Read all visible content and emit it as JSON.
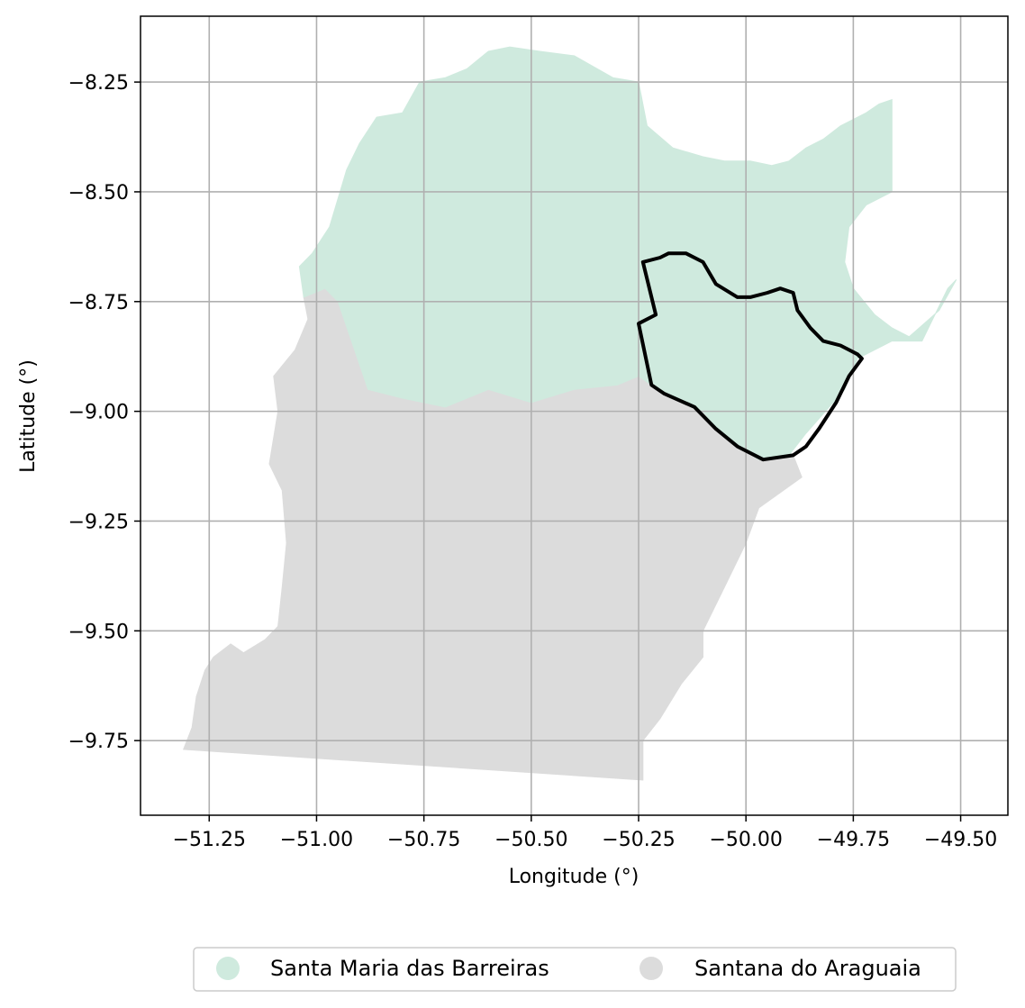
{
  "chart_data": {
    "type": "map",
    "xlabel": "Longitude (°)",
    "ylabel": "Latitude (°)",
    "xlim": [
      -51.41,
      -49.39
    ],
    "ylim": [
      -9.92,
      -8.1
    ],
    "grid": true,
    "legend_placement": "bottom-center",
    "x_ticks": [
      {
        "value": -51.25,
        "label": "−51.25"
      },
      {
        "value": -51.0,
        "label": "−51.00"
      },
      {
        "value": -50.75,
        "label": "−50.75"
      },
      {
        "value": -50.5,
        "label": "−50.50"
      },
      {
        "value": -50.25,
        "label": "−50.25"
      },
      {
        "value": -50.0,
        "label": "−50.00"
      },
      {
        "value": -49.75,
        "label": "−49.75"
      },
      {
        "value": -49.5,
        "label": "−49.50"
      }
    ],
    "y_ticks": [
      {
        "value": -8.25,
        "label": "−8.25"
      },
      {
        "value": -8.5,
        "label": "−8.50"
      },
      {
        "value": -8.75,
        "label": "−8.75"
      },
      {
        "value": -9.0,
        "label": "−9.00"
      },
      {
        "value": -9.25,
        "label": "−9.25"
      },
      {
        "value": -9.5,
        "label": "−9.50"
      },
      {
        "value": -9.75,
        "label": "−9.75"
      }
    ],
    "regions": [
      {
        "name": "Santana do Araguaia",
        "color": "#dcdcdc",
        "coords": [
          [
            -51.31,
            -9.77
          ],
          [
            -51.29,
            -9.72
          ],
          [
            -51.28,
            -9.65
          ],
          [
            -51.26,
            -9.59
          ],
          [
            -51.24,
            -9.56
          ],
          [
            -51.2,
            -9.53
          ],
          [
            -51.17,
            -9.55
          ],
          [
            -51.12,
            -9.52
          ],
          [
            -51.09,
            -9.49
          ],
          [
            -51.08,
            -9.4
          ],
          [
            -51.07,
            -9.3
          ],
          [
            -51.08,
            -9.18
          ],
          [
            -51.11,
            -9.12
          ],
          [
            -51.09,
            -9.0
          ],
          [
            -51.1,
            -8.92
          ],
          [
            -51.05,
            -8.86
          ],
          [
            -51.02,
            -8.79
          ],
          [
            -51.03,
            -8.74
          ],
          [
            -50.98,
            -8.72
          ],
          [
            -50.95,
            -8.75
          ],
          [
            -50.88,
            -8.95
          ],
          [
            -50.8,
            -8.97
          ],
          [
            -50.7,
            -8.99
          ],
          [
            -50.6,
            -8.95
          ],
          [
            -50.5,
            -8.98
          ],
          [
            -50.4,
            -8.95
          ],
          [
            -50.3,
            -8.94
          ],
          [
            -50.25,
            -8.92
          ],
          [
            -50.22,
            -8.94
          ],
          [
            -50.1,
            -9.0
          ],
          [
            -50.05,
            -9.06
          ],
          [
            -49.97,
            -9.11
          ],
          [
            -49.89,
            -9.1
          ],
          [
            -49.87,
            -9.15
          ],
          [
            -49.97,
            -9.22
          ],
          [
            -50.0,
            -9.3
          ],
          [
            -50.05,
            -9.4
          ],
          [
            -50.1,
            -9.5
          ],
          [
            -50.1,
            -9.56
          ],
          [
            -50.15,
            -9.62
          ],
          [
            -50.2,
            -9.7
          ],
          [
            -50.24,
            -9.75
          ],
          [
            -50.24,
            -9.84
          ],
          [
            -51.31,
            -9.77
          ]
        ]
      },
      {
        "name": "Santa Maria das Barreiras",
        "color": "#cfeade",
        "coords": [
          [
            -51.04,
            -8.67
          ],
          [
            -51.01,
            -8.64
          ],
          [
            -50.97,
            -8.58
          ],
          [
            -50.93,
            -8.45
          ],
          [
            -50.9,
            -8.39
          ],
          [
            -50.86,
            -8.33
          ],
          [
            -50.8,
            -8.32
          ],
          [
            -50.76,
            -8.25
          ],
          [
            -50.7,
            -8.24
          ],
          [
            -50.65,
            -8.22
          ],
          [
            -50.6,
            -8.18
          ],
          [
            -50.55,
            -8.17
          ],
          [
            -50.48,
            -8.18
          ],
          [
            -50.4,
            -8.19
          ],
          [
            -50.31,
            -8.24
          ],
          [
            -50.25,
            -8.25
          ],
          [
            -50.23,
            -8.35
          ],
          [
            -50.17,
            -8.4
          ],
          [
            -50.1,
            -8.42
          ],
          [
            -50.05,
            -8.43
          ],
          [
            -49.99,
            -8.43
          ],
          [
            -49.94,
            -8.44
          ],
          [
            -49.9,
            -8.43
          ],
          [
            -49.86,
            -8.4
          ],
          [
            -49.82,
            -8.38
          ],
          [
            -49.78,
            -8.35
          ],
          [
            -49.72,
            -8.32
          ],
          [
            -49.69,
            -8.3
          ],
          [
            -49.66,
            -8.29
          ],
          [
            -49.66,
            -8.5
          ],
          [
            -49.72,
            -8.53
          ],
          [
            -49.76,
            -8.58
          ],
          [
            -49.77,
            -8.66
          ],
          [
            -49.75,
            -8.72
          ],
          [
            -49.7,
            -8.78
          ],
          [
            -49.66,
            -8.81
          ],
          [
            -49.62,
            -8.83
          ],
          [
            -49.55,
            -8.77
          ],
          [
            -49.51,
            -8.7
          ],
          [
            -49.53,
            -8.72
          ],
          [
            -49.59,
            -8.84
          ],
          [
            -49.66,
            -8.84
          ],
          [
            -49.74,
            -8.88
          ],
          [
            -49.77,
            -8.95
          ],
          [
            -49.86,
            -9.05
          ],
          [
            -49.9,
            -9.1
          ],
          [
            -49.97,
            -9.11
          ],
          [
            -50.05,
            -9.06
          ],
          [
            -50.1,
            -9.0
          ],
          [
            -50.22,
            -8.94
          ],
          [
            -50.25,
            -8.92
          ],
          [
            -50.3,
            -8.94
          ],
          [
            -50.4,
            -8.95
          ],
          [
            -50.5,
            -8.98
          ],
          [
            -50.6,
            -8.95
          ],
          [
            -50.7,
            -8.99
          ],
          [
            -50.8,
            -8.97
          ],
          [
            -50.88,
            -8.95
          ],
          [
            -50.95,
            -8.75
          ],
          [
            -50.98,
            -8.72
          ],
          [
            -51.03,
            -8.74
          ],
          [
            -51.04,
            -8.67
          ]
        ]
      }
    ],
    "highlight_outline": {
      "color": "#000000",
      "coords": [
        [
          -50.24,
          -8.66
        ],
        [
          -50.2,
          -8.65
        ],
        [
          -50.18,
          -8.64
        ],
        [
          -50.14,
          -8.64
        ],
        [
          -50.1,
          -8.66
        ],
        [
          -50.07,
          -8.71
        ],
        [
          -50.02,
          -8.74
        ],
        [
          -49.99,
          -8.74
        ],
        [
          -49.95,
          -8.73
        ],
        [
          -49.92,
          -8.72
        ],
        [
          -49.89,
          -8.73
        ],
        [
          -49.88,
          -8.77
        ],
        [
          -49.85,
          -8.81
        ],
        [
          -49.82,
          -8.84
        ],
        [
          -49.78,
          -8.85
        ],
        [
          -49.76,
          -8.86
        ],
        [
          -49.74,
          -8.87
        ],
        [
          -49.73,
          -8.88
        ],
        [
          -49.76,
          -8.92
        ],
        [
          -49.79,
          -8.98
        ],
        [
          -49.83,
          -9.04
        ],
        [
          -49.86,
          -9.08
        ],
        [
          -49.89,
          -9.1
        ],
        [
          -49.96,
          -9.11
        ],
        [
          -50.02,
          -9.08
        ],
        [
          -50.07,
          -9.04
        ],
        [
          -50.12,
          -8.99
        ],
        [
          -50.19,
          -8.96
        ],
        [
          -50.22,
          -8.94
        ],
        [
          -50.25,
          -8.8
        ],
        [
          -50.21,
          -8.78
        ],
        [
          -50.24,
          -8.66
        ]
      ]
    },
    "legend": [
      {
        "label": "Santa Maria das Barreiras",
        "color": "#cfeade"
      },
      {
        "label": "Santana do Araguaia",
        "color": "#dcdcdc"
      }
    ]
  }
}
